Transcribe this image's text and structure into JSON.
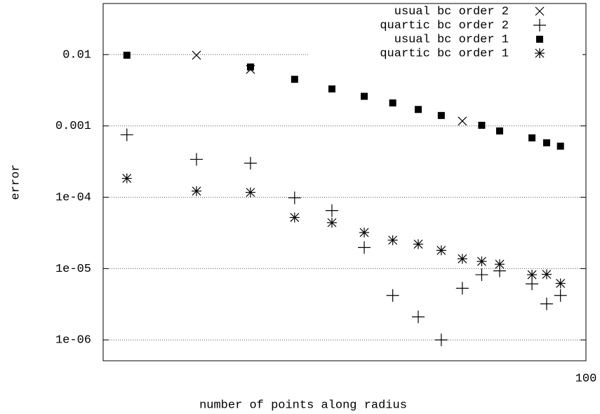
{
  "chart_data": {
    "type": "scatter",
    "xlabel": "number of points along radius",
    "ylabel": "error",
    "xscale": "log",
    "yscale": "log",
    "xlim": [
      13.6,
      100
    ],
    "xticks": [
      100
    ],
    "ylim": [
      5.1e-07,
      0.052
    ],
    "yticks": [
      0.01,
      0.001,
      {
        "value": 0.0001,
        "label": "1e-04"
      },
      {
        "value": 1e-05,
        "label": "1e-05"
      },
      {
        "value": 1e-06,
        "label": "1e-06"
      }
    ],
    "grid": true,
    "legend": "top-right",
    "series": [
      {
        "name": "usual bc order 2",
        "marker": "x",
        "color": "#000000",
        "x": [
          20,
          25,
          60
        ],
        "values": [
          0.0098,
          0.0062,
          0.00117
        ]
      },
      {
        "name": "quartic bc order 2",
        "marker": "plus",
        "color": "#000000",
        "x": [
          15,
          20,
          25,
          30,
          35,
          40,
          45,
          50,
          55,
          60,
          65,
          70,
          80,
          85,
          90
        ],
        "values": [
          0.00075,
          0.00034,
          0.0003,
          9.8e-05,
          6.5e-05,
          1.97e-05,
          4.2e-06,
          2.1e-06,
          1e-06,
          5.3e-06,
          8.2e-06,
          9.3e-06,
          6.1e-06,
          3.2e-06,
          4.2e-06
        ]
      },
      {
        "name": "usual bc order 1",
        "marker": "square",
        "color": "#000000",
        "x": [
          15,
          25,
          30,
          35,
          40,
          45,
          50,
          55,
          65,
          70,
          80,
          85,
          90
        ],
        "values": [
          0.0098,
          0.0067,
          0.0045,
          0.0033,
          0.0026,
          0.0021,
          0.0017,
          0.0014,
          0.00102,
          0.00085,
          0.00068,
          0.00058,
          0.00052
        ]
      },
      {
        "name": "quartic bc order 1",
        "marker": "star",
        "color": "#000000",
        "x": [
          15,
          20,
          25,
          30,
          35,
          40,
          45,
          50,
          55,
          60,
          65,
          70,
          80,
          85,
          90
        ],
        "values": [
          0.000184,
          0.000122,
          0.000117,
          5.2e-05,
          4.4e-05,
          3.2e-05,
          2.5e-05,
          2.2e-05,
          1.8e-05,
          1.37e-05,
          1.26e-05,
          1.15e-05,
          8.2e-06,
          8.3e-06,
          6.2e-06
        ]
      }
    ]
  }
}
